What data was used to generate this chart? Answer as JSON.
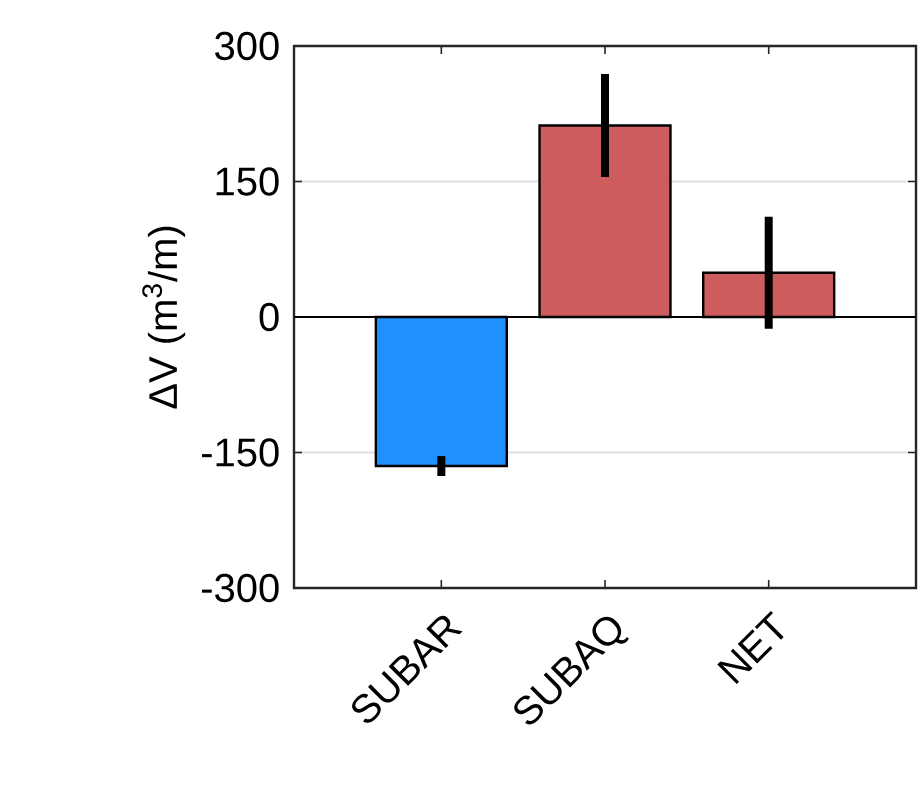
{
  "chart_data": {
    "type": "bar",
    "ylabel": "ΔV (m$^{3}$/m)",
    "categories": [
      "SUBAR",
      "SUBAQ",
      "NET"
    ],
    "values": [
      -165,
      212,
      49
    ],
    "colors": [
      "#1e90ff",
      "#cd5c5c",
      "#cd5c5c"
    ],
    "errors": [
      11,
      57,
      62
    ],
    "ylim": [
      -300,
      300
    ],
    "yticks": [
      -300,
      -150,
      0,
      150,
      300
    ],
    "grid": "y",
    "ref_lines": [
      {
        "axis": "y",
        "value": 0,
        "color": "#000000"
      }
    ]
  }
}
